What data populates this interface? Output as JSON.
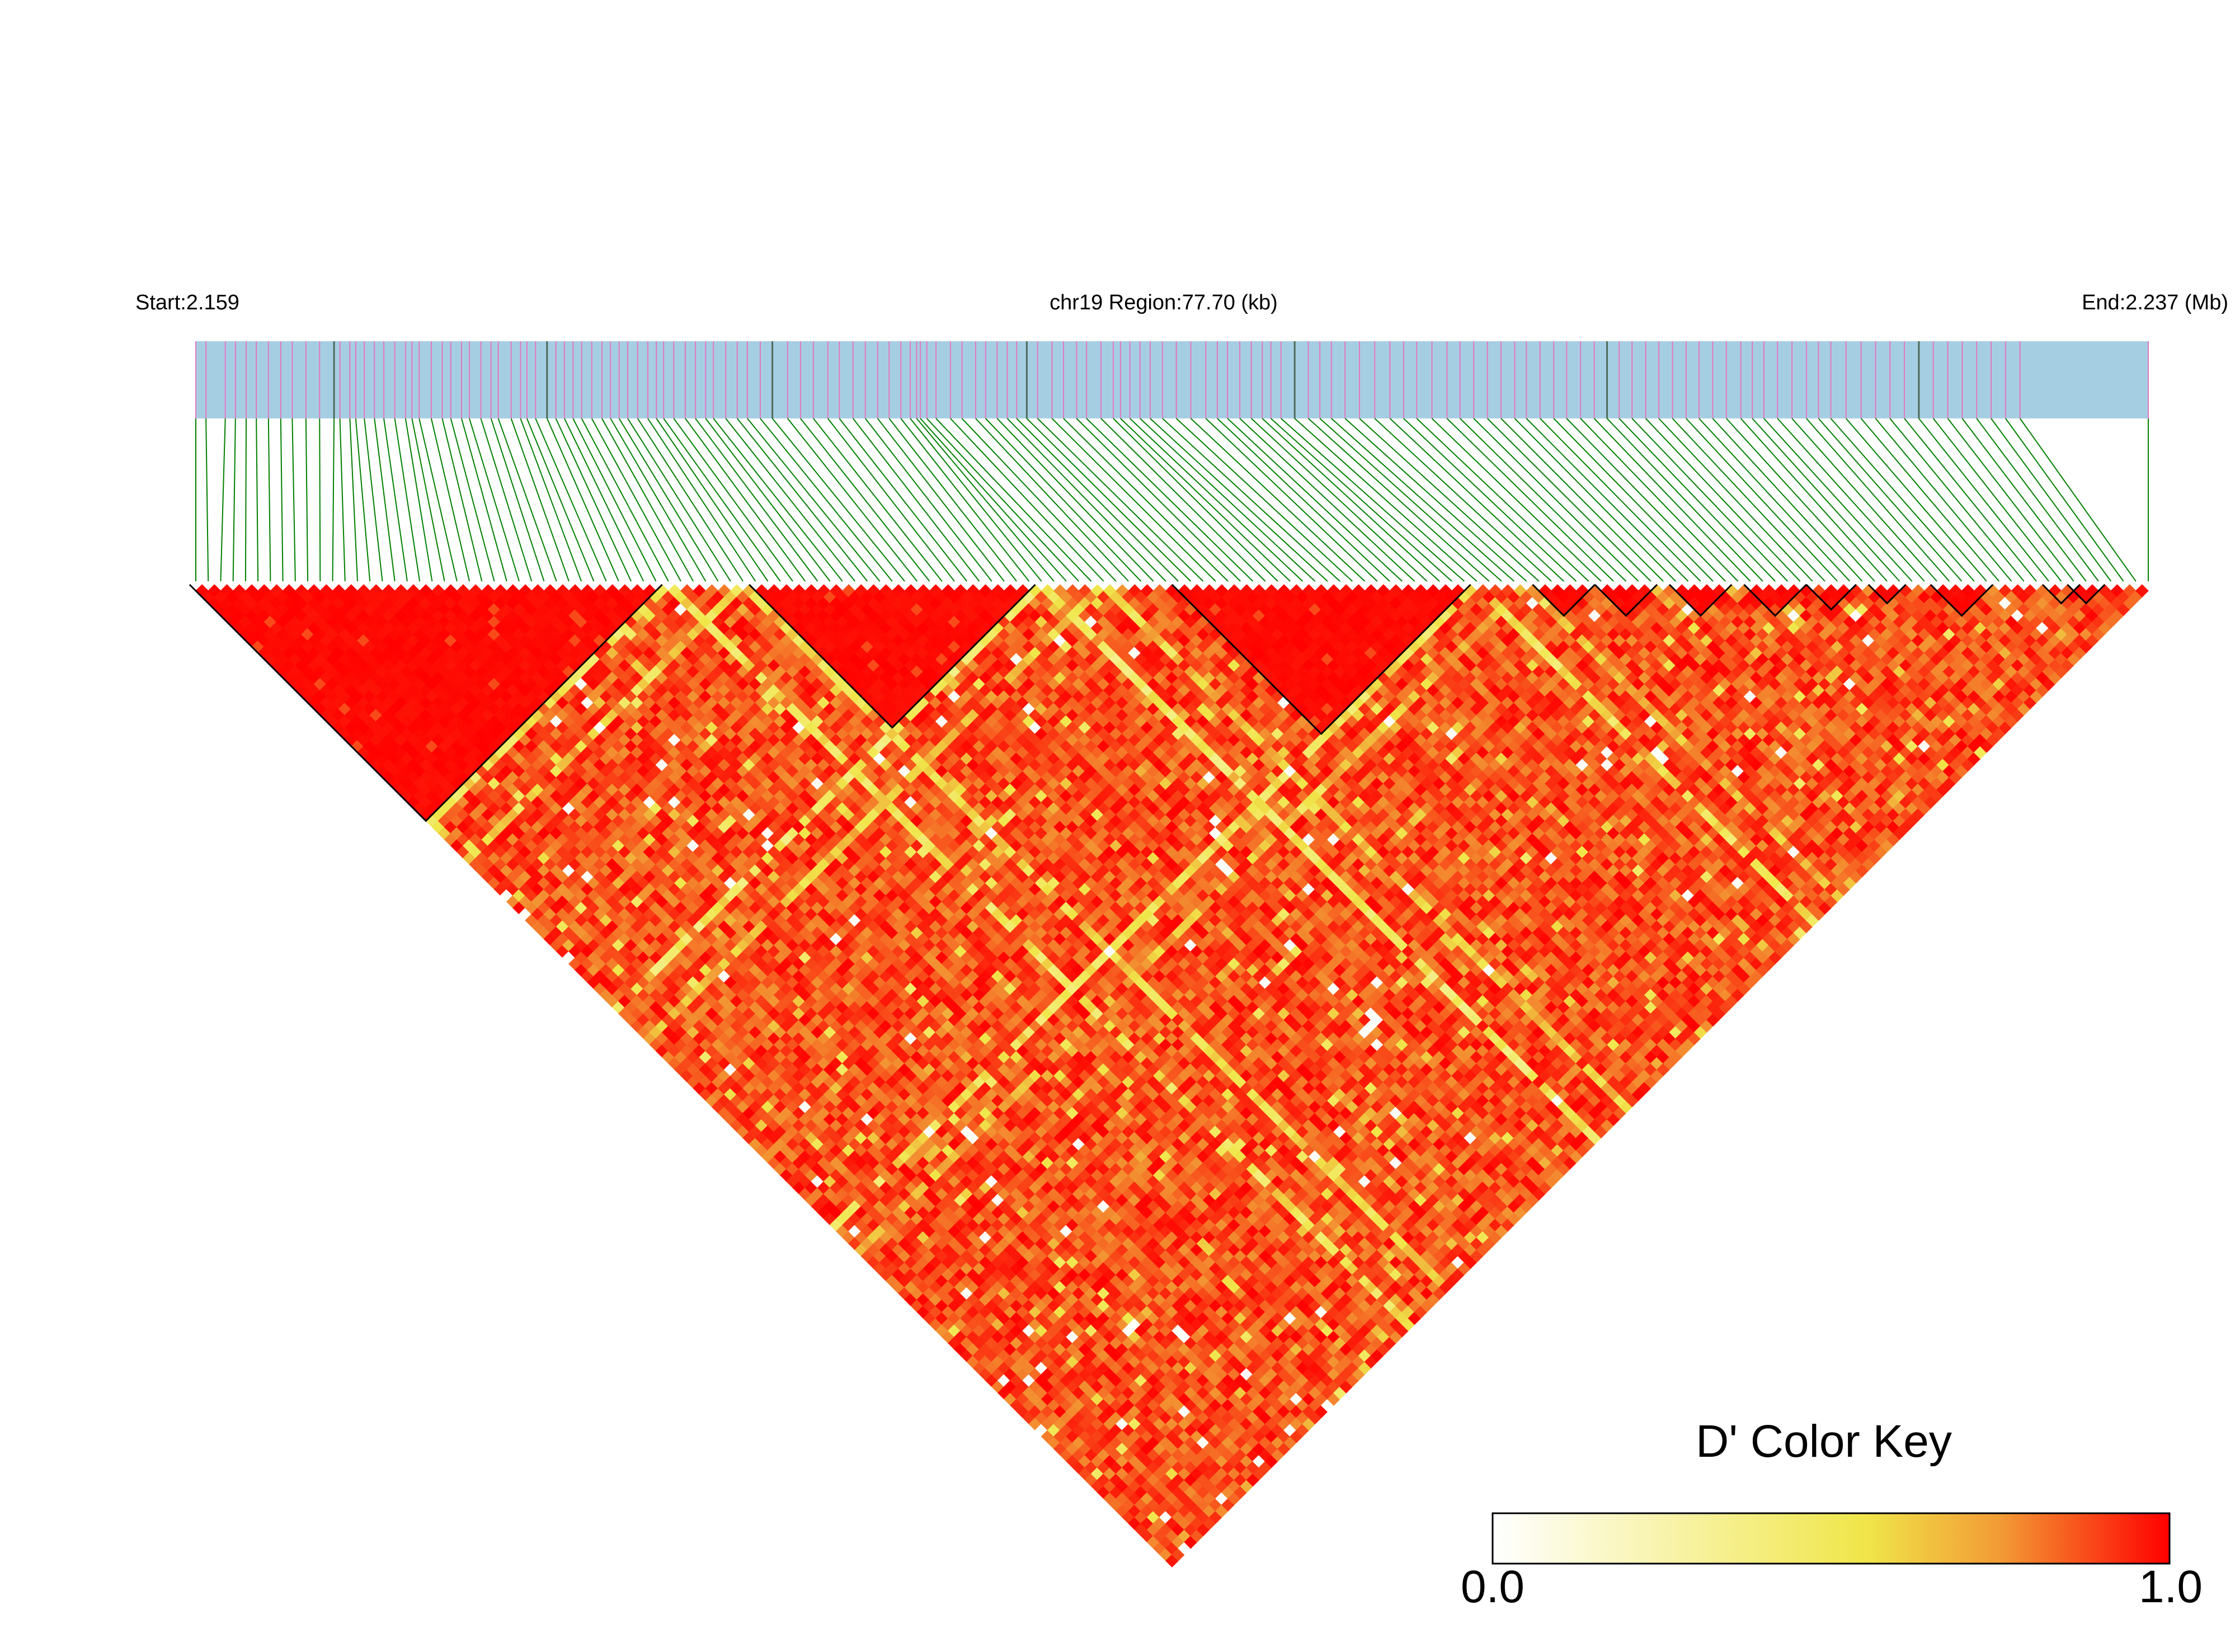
{
  "chart_data": {
    "type": "heatmap",
    "variant": "linkage-disequilibrium-triangle",
    "header": {
      "start_label": "Start:2.159",
      "region_label": "chr19 Region:77.70 (kb)",
      "end_label": "End:2.237 (Mb)"
    },
    "region": {
      "chromosome": "chr19",
      "start_mb": 2.159,
      "end_mb": 2.237,
      "length_kb": 77.7
    },
    "n_snps": 158,
    "snp_positions_rel": [
      0.0,
      0.0052,
      0.0151,
      0.0203,
      0.0258,
      0.031,
      0.0372,
      0.0435,
      0.0494,
      0.0564,
      0.0634,
      0.0708,
      0.0738,
      0.0789,
      0.0819,
      0.0863,
      0.0915,
      0.0963,
      0.1019,
      0.1074,
      0.1107,
      0.1144,
      0.1206,
      0.1262,
      0.1306,
      0.1361,
      0.1401,
      0.146,
      0.1512,
      0.1549,
      0.1615,
      0.1663,
      0.1696,
      0.174,
      0.1799,
      0.1844,
      0.1888,
      0.1932,
      0.1976,
      0.2028,
      0.208,
      0.2124,
      0.2168,
      0.2212,
      0.2263,
      0.2315,
      0.2359,
      0.2396,
      0.2448,
      0.2507,
      0.2559,
      0.2611,
      0.2651,
      0.2714,
      0.2773,
      0.2825,
      0.2891,
      0.2953,
      0.3031,
      0.3097,
      0.3163,
      0.3237,
      0.3296,
      0.3366,
      0.3429,
      0.3492,
      0.3551,
      0.3611,
      0.3659,
      0.3692,
      0.3711,
      0.3744,
      0.3791,
      0.3865,
      0.3924,
      0.3994,
      0.4045,
      0.4104,
      0.4156,
      0.4204,
      0.4256,
      0.4311,
      0.4385,
      0.4444,
      0.4511,
      0.4562,
      0.4636,
      0.4699,
      0.4736,
      0.4784,
      0.4836,
      0.4888,
      0.4951,
      0.5022,
      0.5096,
      0.5173,
      0.5232,
      0.5284,
      0.5347,
      0.5406,
      0.5462,
      0.5506,
      0.5558,
      0.5628,
      0.5698,
      0.5757,
      0.5816,
      0.5886,
      0.596,
      0.6038,
      0.6116,
      0.6186,
      0.6253,
      0.6331,
      0.6408,
      0.6475,
      0.6545,
      0.6615,
      0.6685,
      0.6755,
      0.6815,
      0.6885,
      0.6955,
      0.7021,
      0.7092,
      0.7162,
      0.7228,
      0.729,
      0.7356,
      0.7426,
      0.7493,
      0.7563,
      0.7633,
      0.7699,
      0.7769,
      0.7839,
      0.7913,
      0.7972,
      0.8031,
      0.8101,
      0.8175,
      0.8249,
      0.8311,
      0.8374,
      0.8452,
      0.8529,
      0.8603,
      0.8677,
      0.8751,
      0.8825,
      0.8899,
      0.8973,
      0.9047,
      0.9121,
      0.9195,
      0.9269,
      0.9343,
      1.0
    ],
    "blocks": [
      {
        "start": 0,
        "end": 37
      },
      {
        "start": 45,
        "end": 67
      },
      {
        "start": 79,
        "end": 102
      },
      {
        "start": 108,
        "end": 112
      },
      {
        "start": 113,
        "end": 117
      },
      {
        "start": 119,
        "end": 123
      },
      {
        "start": 125,
        "end": 129
      },
      {
        "start": 130,
        "end": 133
      },
      {
        "start": 135,
        "end": 137
      },
      {
        "start": 140,
        "end": 144
      },
      {
        "start": 149,
        "end": 151
      },
      {
        "start": 151,
        "end": 153
      }
    ],
    "dprime_note": "Pairwise D' values for 158 SNPs; predominantly high (0.75–1.0) with diagonal bands of lower LD (0.3–0.6).",
    "low_ld_bands": [
      {
        "snp": 38,
        "level": 0.4
      },
      {
        "snp": 44,
        "level": 0.45
      },
      {
        "snp": 68,
        "level": 0.35
      },
      {
        "snp": 73,
        "level": 0.5
      },
      {
        "snp": 103,
        "level": 0.4
      },
      {
        "snp": 107,
        "level": 0.55
      }
    ],
    "color_key": {
      "title": "D' Color Key",
      "min_label": "0.0",
      "max_label": "1.0",
      "range": [
        0.0,
        1.0
      ],
      "colors": [
        "#ffffff",
        "#f2e94e",
        "#f0a030",
        "#ff0000"
      ]
    },
    "colors": {
      "gene_track": "#a6cee3",
      "snp_tick": "#e377c2",
      "dark_tick": "#4d6b5a",
      "connector": "#008000",
      "block_outline": "#000000",
      "high_ld": "#ff0000"
    }
  }
}
